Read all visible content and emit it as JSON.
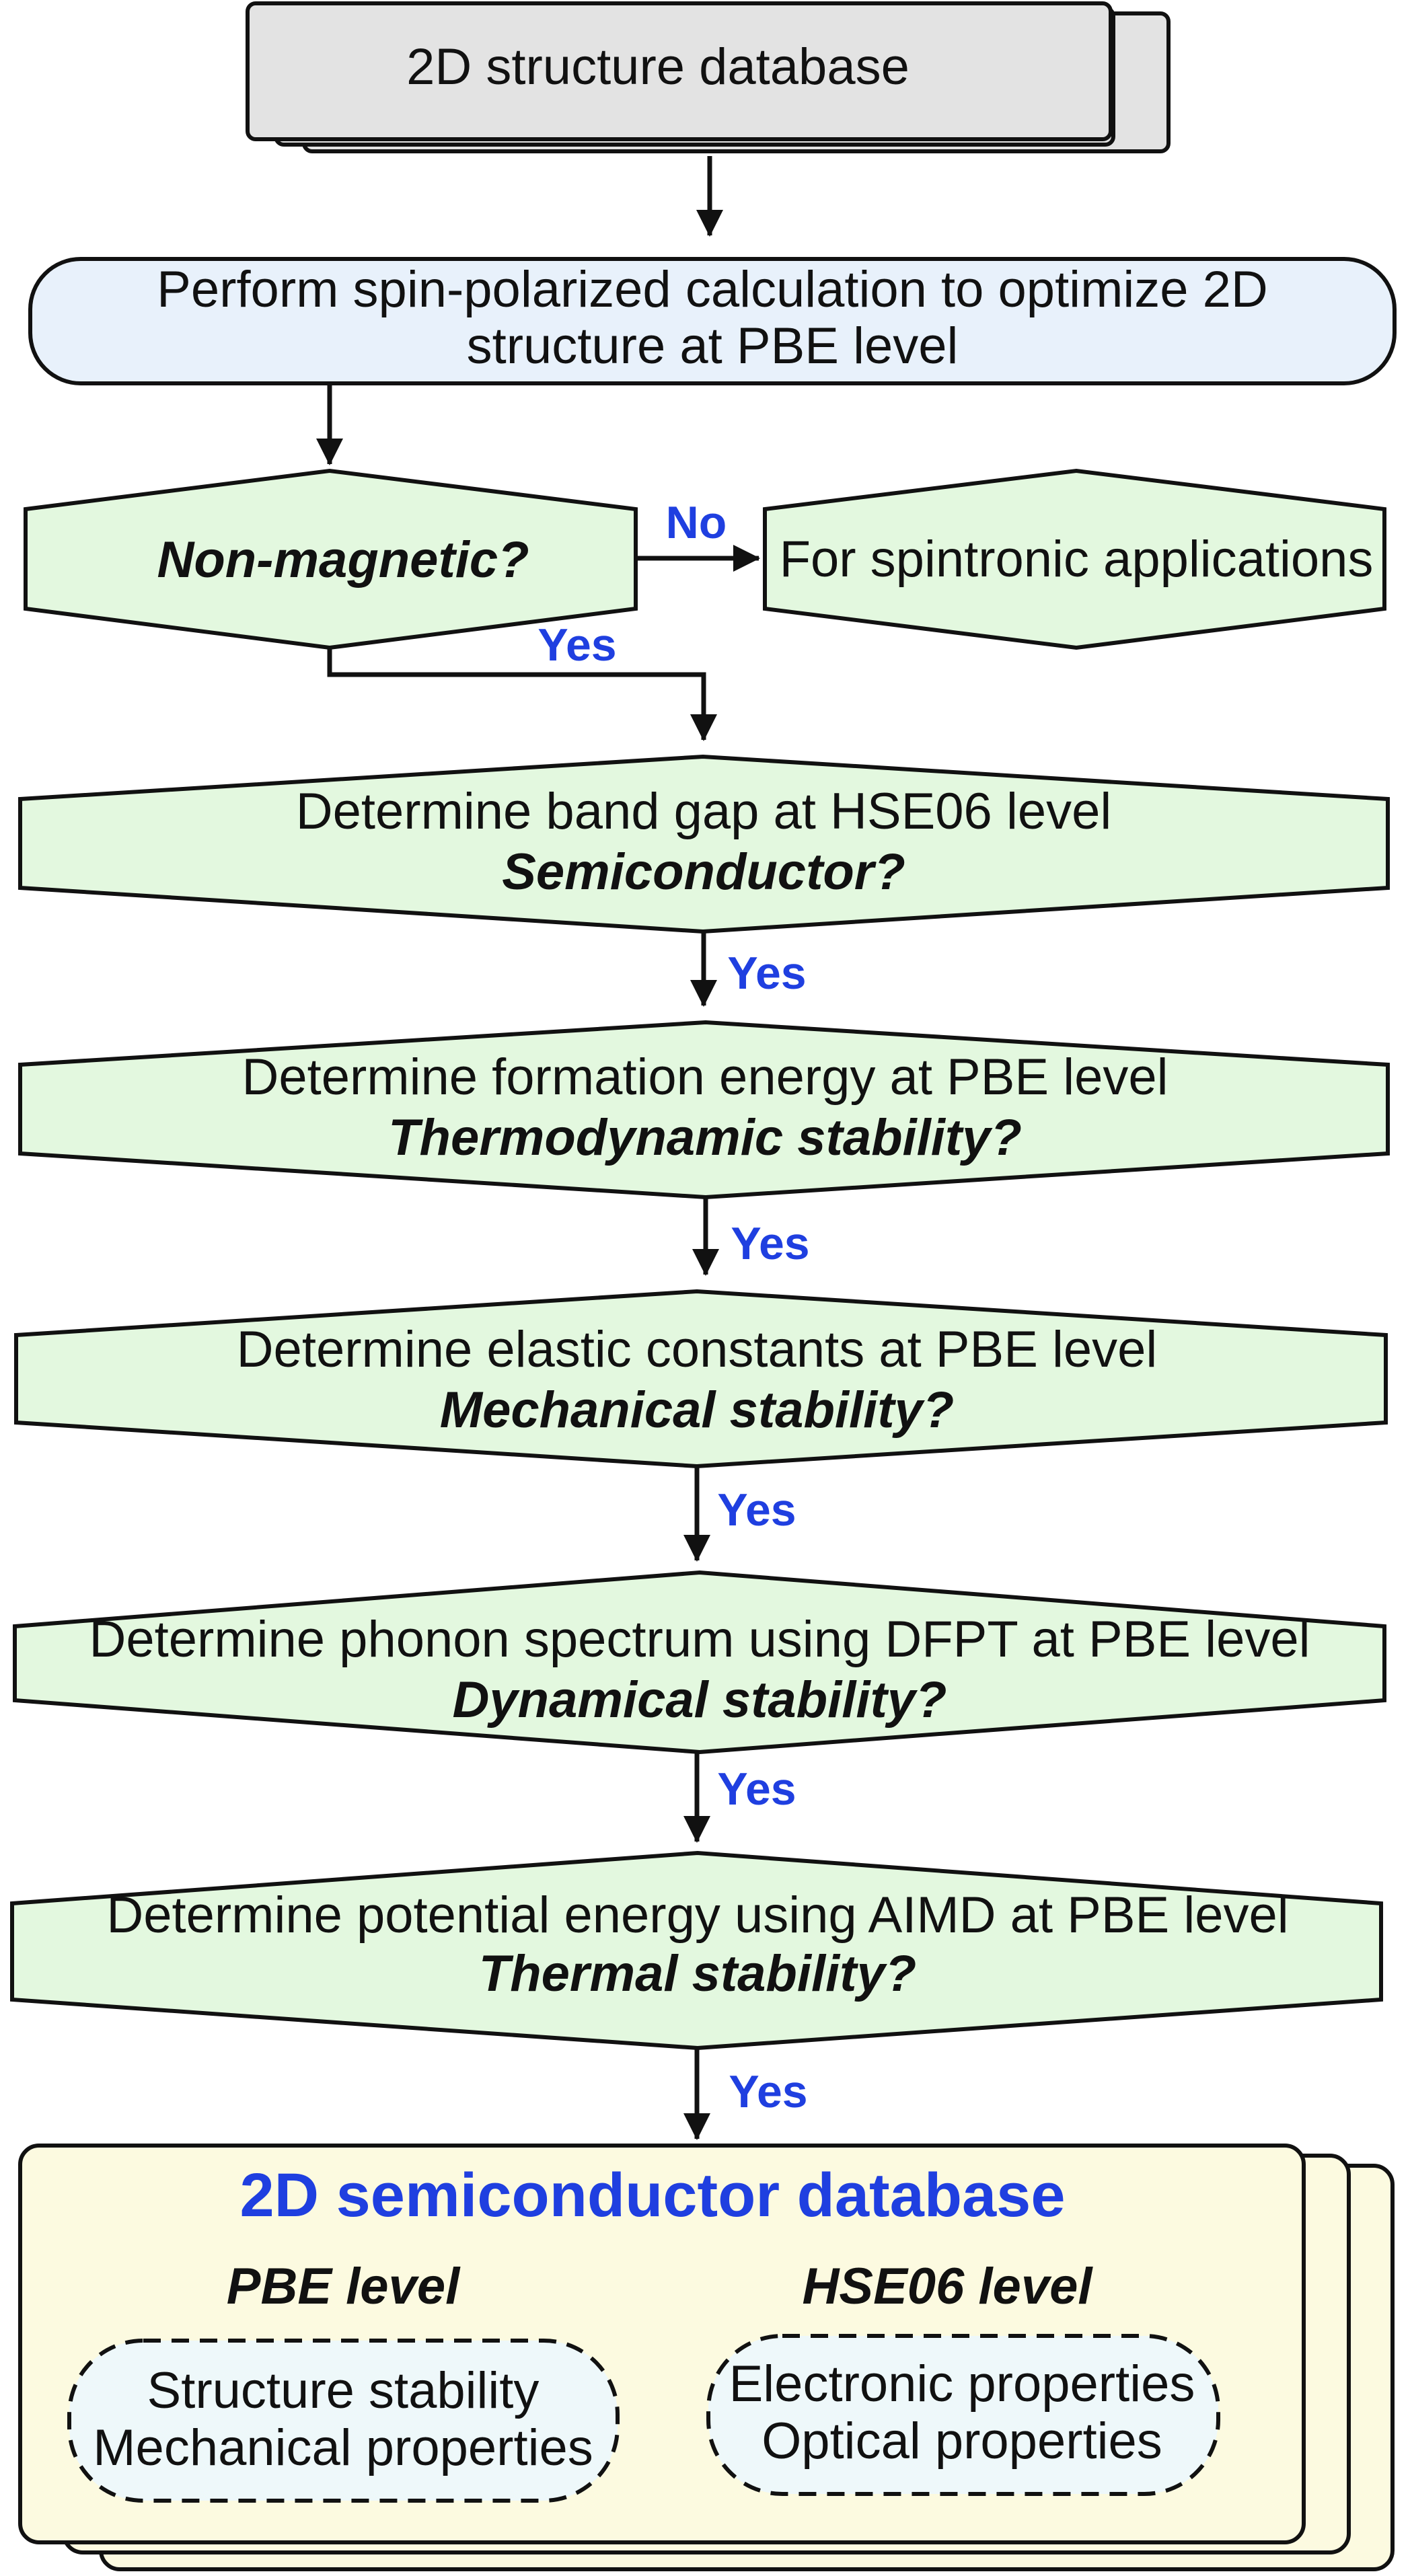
{
  "colors": {
    "ink": "#111111",
    "accent_blue": "#1f3fe0",
    "input_db_fill": "#e3e3e3",
    "optimize_fill": "#e8f1fb",
    "decision_fill": "#e3f8df",
    "output_db_fill": "#fcfae0",
    "bubble_fill": "#eef8fa"
  },
  "input_database": {
    "label": "2D structure database"
  },
  "optimize_step": {
    "line1": "Perform spin-polarized calculation to optimize 2D",
    "line2": "structure at PBE level"
  },
  "magnetic_check": {
    "question": "Non-magnetic?",
    "no_label": "No",
    "yes_label": "Yes",
    "no_branch": "For spintronic applications"
  },
  "screening_steps": [
    {
      "action": "Determine band gap at HSE06 level",
      "question": "Semiconductor?",
      "yes_label": "Yes"
    },
    {
      "action": "Determine formation energy at PBE level",
      "question": "Thermodynamic stability?",
      "yes_label": "Yes"
    },
    {
      "action": "Determine elastic constants at PBE level",
      "question": "Mechanical stability?",
      "yes_label": "Yes"
    },
    {
      "action": "Determine phonon spectrum using DFPT at PBE level",
      "question": "Dynamical stability?",
      "yes_label": "Yes"
    },
    {
      "action": "Determine potential energy using AIMD at PBE level",
      "question": "Thermal stability?",
      "yes_label": "Yes"
    }
  ],
  "output_database": {
    "title": "2D semiconductor database",
    "groups": [
      {
        "heading": "PBE level",
        "items": [
          "Structure stability",
          "Mechanical properties"
        ]
      },
      {
        "heading": "HSE06 level",
        "items": [
          "Electronic properties",
          "Optical properties"
        ]
      }
    ]
  }
}
